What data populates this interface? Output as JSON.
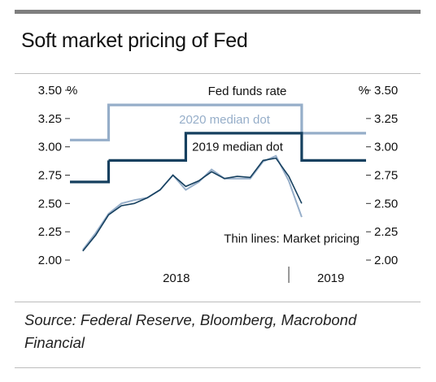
{
  "title": "Soft market pricing of Fed",
  "source": "Source: Federal Reserve, Bloomberg, Macrobond Financial",
  "colors": {
    "dark": "#16405f",
    "light": "#96aec9",
    "rule": "#7f7f7f"
  },
  "chart_data": {
    "type": "line",
    "title": "Soft market pricing of Fed",
    "ylim": [
      2.0,
      3.5
    ],
    "yticks": [
      2.0,
      2.25,
      2.5,
      2.75,
      3.0,
      3.25,
      3.5
    ],
    "ytick_labels": [
      "2.00",
      "2.25",
      "2.50",
      "2.75",
      "3.00",
      "3.25",
      "3.50"
    ],
    "yunit_left": "%",
    "yunit_right": "%",
    "xlim": [
      "2017-06",
      "2019-05"
    ],
    "xticks": [
      {
        "at": "2018-01",
        "label": "2018"
      },
      {
        "at": "2019-01",
        "label": "2019"
      }
    ],
    "xtick_marks": [
      "2018-11"
    ],
    "grid": false,
    "annotations": {
      "fed_funds": "Fed funds rate",
      "dot_2020": "2020 median dot",
      "dot_2019": "2019 median dot",
      "thin_lines": "Thin lines: Market pricing"
    },
    "series": [
      {
        "name": "2020 median dot",
        "style": "step-light",
        "points": [
          [
            "2017-06",
            3.06
          ],
          [
            "2017-09",
            3.06
          ],
          [
            "2017-09",
            3.37
          ],
          [
            "2018-12",
            3.37
          ],
          [
            "2018-12",
            3.12
          ],
          [
            "2019-05",
            3.12
          ]
        ]
      },
      {
        "name": "2019 median dot",
        "style": "step-dark",
        "points": [
          [
            "2017-09",
            2.88
          ],
          [
            "2018-03",
            2.88
          ],
          [
            "2018-03",
            3.12
          ],
          [
            "2018-12",
            3.12
          ],
          [
            "2018-12",
            2.88
          ],
          [
            "2019-05",
            2.88
          ]
        ]
      },
      {
        "name": "Fed funds rate",
        "style": "step-dark",
        "points": [
          [
            "2017-06",
            2.69
          ],
          [
            "2017-09",
            2.69
          ],
          [
            "2017-09",
            2.88
          ]
        ]
      },
      {
        "name": "Market pricing (2020)",
        "style": "thin-light",
        "points": [
          [
            "2017-07",
            2.09
          ],
          [
            "2017-08",
            2.24
          ],
          [
            "2017-09",
            2.41
          ],
          [
            "2017-10",
            2.5
          ],
          [
            "2017-11",
            2.53
          ],
          [
            "2017-12",
            2.55
          ],
          [
            "2018-01",
            2.62
          ],
          [
            "2018-02",
            2.75
          ],
          [
            "2018-03",
            2.62
          ],
          [
            "2018-04",
            2.69
          ],
          [
            "2018-05",
            2.8
          ],
          [
            "2018-06",
            2.72
          ],
          [
            "2018-07",
            2.72
          ],
          [
            "2018-08",
            2.72
          ],
          [
            "2018-09",
            2.87
          ],
          [
            "2018-10",
            2.92
          ],
          [
            "2018-11",
            2.7
          ],
          [
            "2018-12",
            2.38
          ]
        ]
      },
      {
        "name": "Market pricing (2019)",
        "style": "thin-dark",
        "points": [
          [
            "2017-07",
            2.08
          ],
          [
            "2017-08",
            2.22
          ],
          [
            "2017-09",
            2.4
          ],
          [
            "2017-10",
            2.48
          ],
          [
            "2017-11",
            2.5
          ],
          [
            "2017-12",
            2.55
          ],
          [
            "2018-01",
            2.62
          ],
          [
            "2018-02",
            2.75
          ],
          [
            "2018-03",
            2.65
          ],
          [
            "2018-04",
            2.7
          ],
          [
            "2018-05",
            2.78
          ],
          [
            "2018-06",
            2.72
          ],
          [
            "2018-07",
            2.74
          ],
          [
            "2018-08",
            2.73
          ],
          [
            "2018-09",
            2.88
          ],
          [
            "2018-10",
            2.9
          ],
          [
            "2018-11",
            2.74
          ],
          [
            "2018-12",
            2.5
          ]
        ]
      }
    ]
  }
}
